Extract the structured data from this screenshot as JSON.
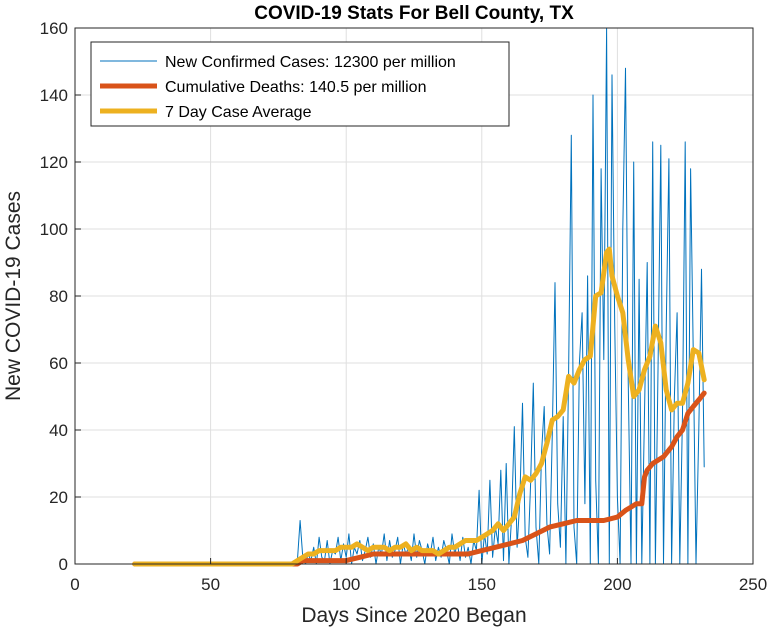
{
  "chart_data": {
    "type": "line",
    "title": "COVID-19 Stats For Bell County, TX",
    "xlabel": "Days Since 2020 Began",
    "ylabel": "New COVID-19 Cases",
    "xlim": [
      0,
      250
    ],
    "ylim": [
      0,
      160
    ],
    "xticks": [
      0,
      50,
      100,
      150,
      200,
      250
    ],
    "yticks": [
      0,
      20,
      40,
      60,
      80,
      100,
      120,
      140,
      160
    ],
    "grid": true,
    "legend_position": "top-left",
    "series": [
      {
        "name": "New Confirmed Cases: 12300 per million",
        "color": "#0072BD",
        "x": [
          22,
          60,
          80,
          82,
          83,
          84,
          85,
          86,
          87,
          88,
          89,
          90,
          91,
          92,
          93,
          94,
          95,
          96,
          97,
          98,
          99,
          100,
          101,
          102,
          103,
          104,
          105,
          106,
          107,
          108,
          109,
          110,
          111,
          112,
          113,
          114,
          115,
          116,
          117,
          118,
          119,
          120,
          121,
          122,
          123,
          124,
          125,
          126,
          127,
          128,
          129,
          130,
          131,
          132,
          133,
          134,
          135,
          136,
          137,
          138,
          139,
          140,
          141,
          142,
          143,
          144,
          145,
          146,
          147,
          148,
          149,
          150,
          151,
          152,
          153,
          154,
          155,
          156,
          157,
          158,
          159,
          160,
          161,
          162,
          163,
          164,
          165,
          166,
          167,
          168,
          169,
          170,
          171,
          172,
          173,
          174,
          175,
          176,
          177,
          178,
          179,
          180,
          181,
          182,
          183,
          184,
          185,
          186,
          187,
          188,
          189,
          190,
          191,
          192,
          193,
          194,
          195,
          196,
          197,
          198,
          199,
          200,
          201,
          202,
          203,
          204,
          205,
          206,
          207,
          208,
          209,
          210,
          211,
          212,
          213,
          214,
          215,
          216,
          217,
          218,
          219,
          220,
          221,
          222,
          223,
          224,
          225,
          226,
          227,
          228,
          229,
          230,
          231,
          232
        ],
        "values": [
          0,
          0,
          0,
          1,
          13,
          2,
          0,
          3,
          1,
          5,
          0,
          8,
          2,
          1,
          7,
          0,
          4,
          3,
          8,
          1,
          6,
          2,
          9,
          0,
          5,
          3,
          7,
          1,
          4,
          8,
          2,
          6,
          0,
          5,
          3,
          9,
          1,
          7,
          2,
          4,
          8,
          0,
          6,
          3,
          5,
          1,
          9,
          2,
          7,
          4,
          0,
          6,
          3,
          8,
          1,
          5,
          2,
          7,
          4,
          0,
          9,
          3,
          6,
          1,
          8,
          2,
          5,
          0,
          7,
          4,
          22,
          0,
          9,
          3,
          25,
          2,
          11,
          6,
          28,
          1,
          30,
          0,
          14,
          41,
          5,
          19,
          48,
          8,
          2,
          24,
          54,
          11,
          0,
          33,
          47,
          12,
          3,
          39,
          84,
          18,
          5,
          44,
          0,
          57,
          128,
          11,
          0,
          60,
          75,
          18,
          86,
          0,
          140,
          25,
          0,
          118,
          61,
          160,
          0,
          146,
          72,
          20,
          0,
          100,
          148,
          55,
          0,
          120,
          0,
          85,
          0,
          45,
          90,
          0,
          126,
          0,
          60,
          125,
          0,
          70,
          121,
          0,
          50,
          75,
          0,
          45,
          126,
          0,
          118,
          62,
          0,
          40,
          88,
          29
        ],
        "width": 1
      },
      {
        "name": "Cumulative Deaths: 140.5 per million",
        "color": "#D95319",
        "x": [
          22,
          60,
          80,
          82,
          84,
          86,
          88,
          90,
          95,
          100,
          105,
          110,
          115,
          120,
          125,
          130,
          135,
          140,
          145,
          150,
          155,
          160,
          165,
          170,
          175,
          180,
          185,
          190,
          195,
          200,
          203,
          205,
          207,
          208,
          209,
          210,
          211,
          212,
          213,
          215,
          217,
          219,
          220,
          222,
          224,
          226,
          228,
          230,
          232
        ],
        "values": [
          0,
          0,
          0,
          0,
          1,
          1,
          1,
          1,
          1,
          1,
          2,
          3,
          3,
          3,
          3,
          3,
          3,
          3,
          3,
          4,
          5,
          6,
          7,
          9,
          11,
          12,
          13,
          13,
          13,
          14,
          16,
          17,
          18,
          18,
          18,
          26,
          28,
          29,
          30,
          31,
          32,
          34,
          35,
          38,
          40,
          45,
          47,
          49,
          51
        ],
        "width": 5
      },
      {
        "name": "7 Day Case Average",
        "color": "#EDB120",
        "x": [
          22,
          60,
          80,
          82,
          84,
          86,
          88,
          90,
          92,
          94,
          96,
          98,
          100,
          102,
          104,
          106,
          108,
          110,
          112,
          114,
          116,
          118,
          120,
          122,
          124,
          126,
          128,
          130,
          132,
          134,
          136,
          138,
          140,
          142,
          144,
          146,
          148,
          150,
          152,
          154,
          156,
          158,
          160,
          162,
          164,
          166,
          168,
          170,
          172,
          174,
          176,
          178,
          180,
          182,
          184,
          186,
          188,
          190,
          192,
          194,
          196,
          197,
          198,
          200,
          202,
          204,
          206,
          208,
          210,
          212,
          214,
          216,
          218,
          220,
          222,
          224,
          226,
          228,
          230,
          232
        ],
        "values": [
          0,
          0,
          0,
          1,
          2,
          3,
          3,
          4,
          4,
          4,
          4,
          5,
          5,
          5,
          6,
          5,
          4,
          5,
          5,
          5,
          4,
          5,
          5,
          6,
          4,
          5,
          4,
          4,
          4,
          3,
          4,
          5,
          5,
          6,
          7,
          7,
          7,
          8,
          9,
          10,
          12,
          10,
          12,
          14,
          21,
          26,
          25,
          27,
          30,
          36,
          43,
          44,
          46,
          56,
          54,
          58,
          61,
          62,
          80,
          81,
          93,
          94,
          86,
          80,
          75,
          61,
          50,
          52,
          58,
          62,
          71,
          66,
          52,
          46,
          48,
          48,
          54,
          64,
          63,
          55
        ],
        "width": 5
      }
    ]
  }
}
